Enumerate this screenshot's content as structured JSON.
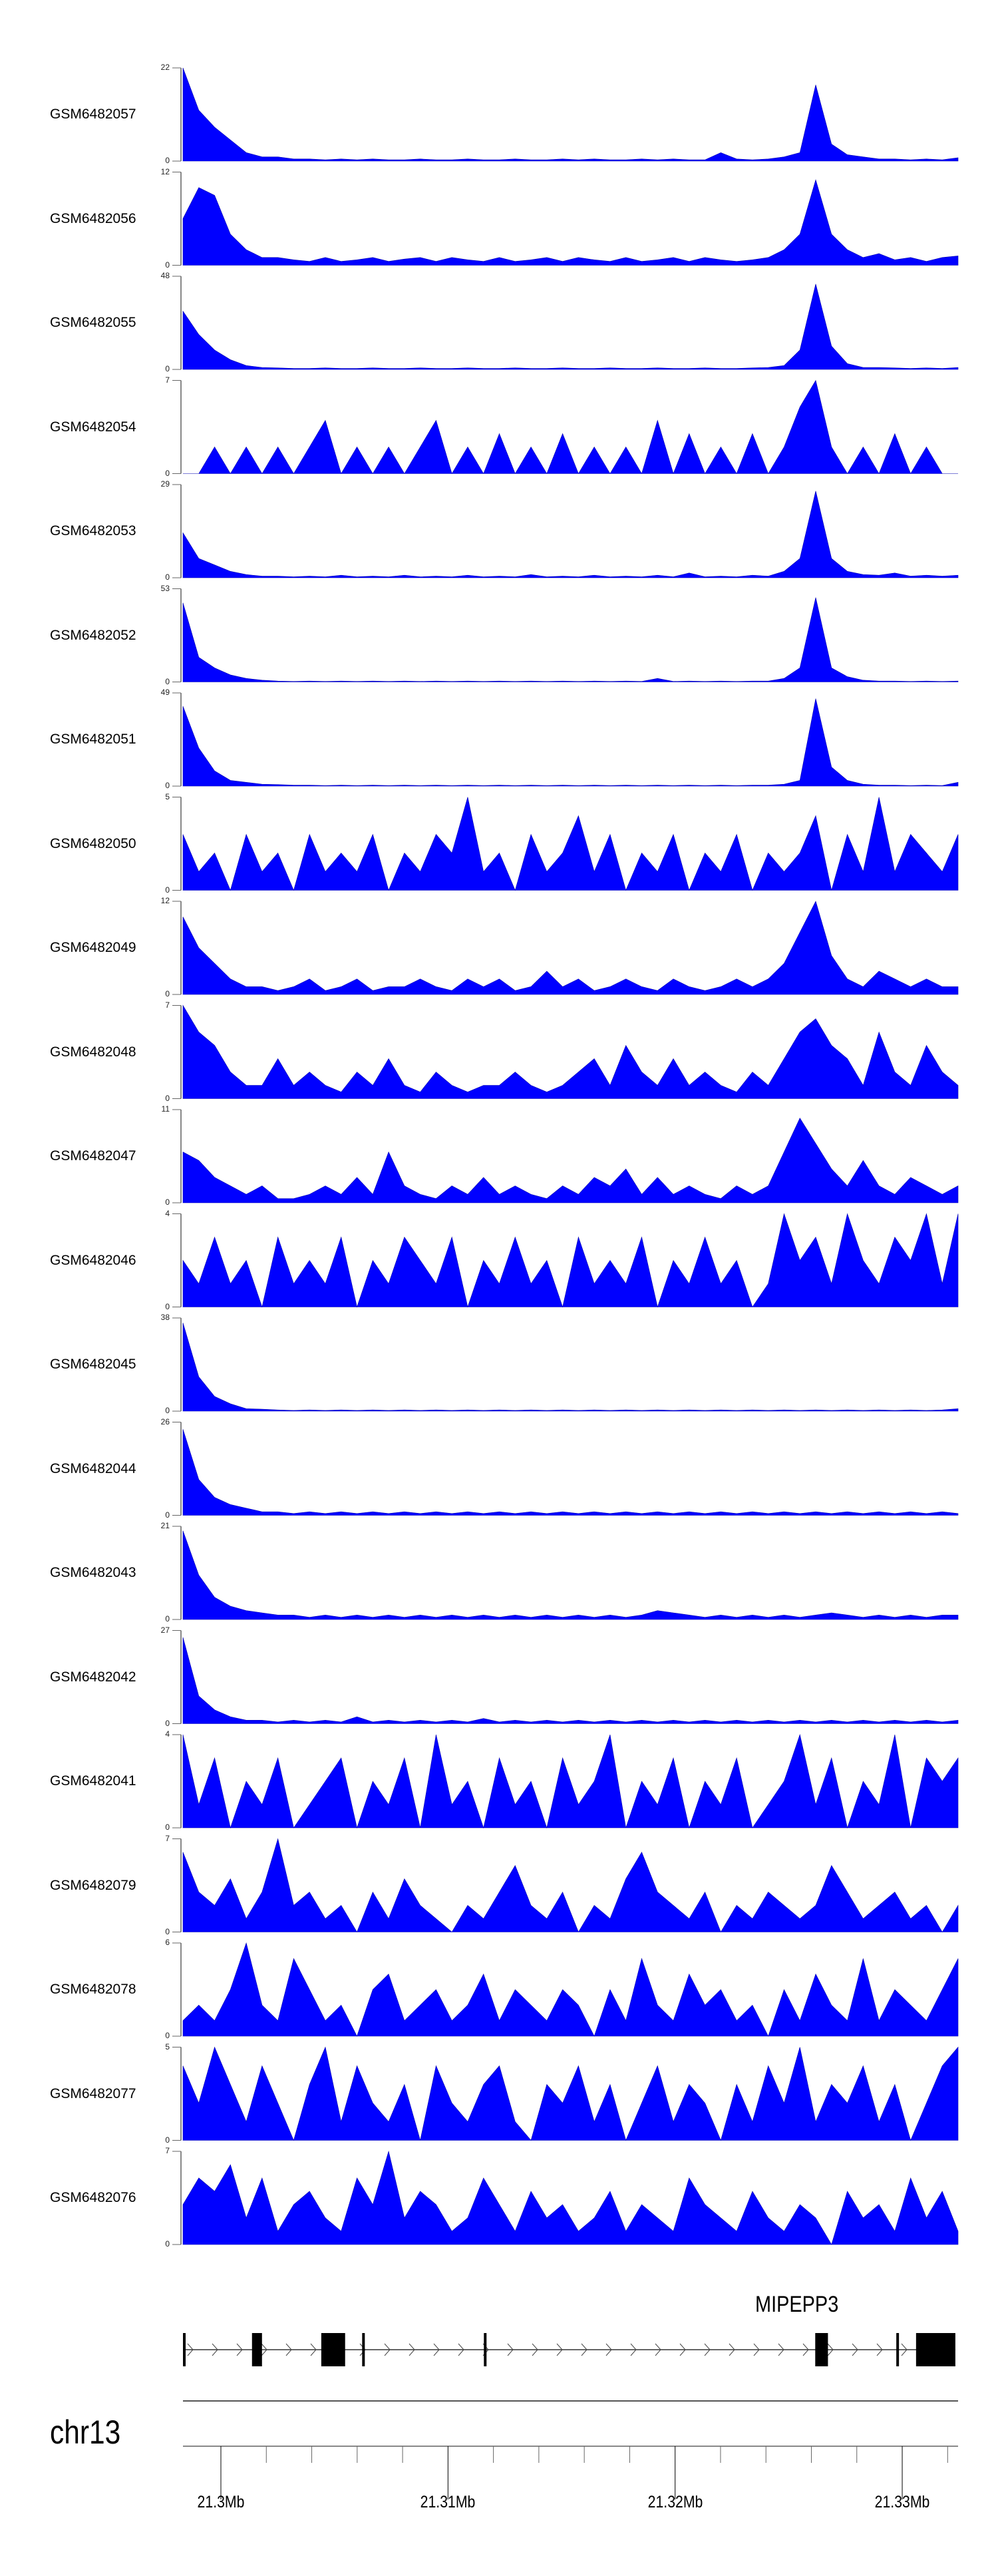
{
  "chart_data": {
    "type": "area",
    "title": "",
    "xlabel": "",
    "chromosome": "chr13",
    "x_range_kb": [
      21298.33,
      21332.46
    ],
    "x_ticks_kb": [
      21300,
      21310,
      21320,
      21330
    ],
    "x_tick_labels": [
      "21.3Mb",
      "21.31Mb",
      "21.32Mb",
      "21.33Mb"
    ],
    "minor_tick_step_kb": 2,
    "fill_color": "#0000ff",
    "tracks": [
      {
        "name": "GSM6482057",
        "ymax": 22,
        "values": [
          22,
          12,
          8,
          5,
          2,
          1,
          1,
          0.5,
          0.5,
          0.3,
          0.5,
          0.3,
          0.5,
          0.3,
          0.3,
          0.5,
          0.3,
          0.3,
          0.5,
          0.3,
          0.3,
          0.5,
          0.3,
          0.3,
          0.5,
          0.3,
          0.5,
          0.3,
          0.3,
          0.5,
          0.3,
          0.5,
          0.3,
          0.3,
          2,
          0.5,
          0.3,
          0.5,
          1,
          2,
          18,
          4,
          1.5,
          1,
          0.5,
          0.5,
          0.3,
          0.5,
          0.3,
          0.8
        ]
      },
      {
        "name": "GSM6482056",
        "ymax": 12,
        "values": [
          6,
          10,
          9,
          4,
          2,
          1,
          1,
          0.7,
          0.5,
          1,
          0.5,
          0.7,
          1,
          0.5,
          0.8,
          1,
          0.5,
          1,
          0.7,
          0.5,
          1,
          0.5,
          0.7,
          1,
          0.5,
          1,
          0.7,
          0.5,
          1,
          0.5,
          0.7,
          1,
          0.5,
          1,
          0.7,
          0.5,
          0.7,
          1,
          2,
          4,
          11,
          4,
          2,
          1,
          1.5,
          0.7,
          1,
          0.5,
          1,
          1.2
        ]
      },
      {
        "name": "GSM6482055",
        "ymax": 48,
        "values": [
          30,
          18,
          10,
          5,
          2,
          1,
          0.8,
          0.5,
          0.5,
          0.8,
          0.5,
          0.5,
          0.8,
          0.5,
          0.5,
          0.8,
          0.5,
          0.5,
          0.8,
          0.5,
          0.5,
          0.8,
          0.5,
          0.5,
          0.8,
          0.5,
          0.5,
          0.8,
          0.5,
          0.5,
          0.8,
          0.5,
          0.5,
          0.8,
          0.5,
          0.5,
          0.8,
          1,
          2,
          10,
          44,
          12,
          3,
          1,
          1,
          0.8,
          0.5,
          0.8,
          0.5,
          1
        ]
      },
      {
        "name": "GSM6482054",
        "ymax": 7,
        "values": [
          0,
          0,
          2,
          0,
          2,
          0,
          2,
          0,
          2,
          4,
          0,
          2,
          0,
          2,
          0,
          2,
          4,
          0,
          2,
          0,
          3,
          0,
          2,
          0,
          3,
          0,
          2,
          0,
          2,
          0,
          4,
          0,
          3,
          0,
          2,
          0,
          3,
          0,
          2,
          5,
          7,
          2,
          0,
          2,
          0,
          3,
          0,
          2,
          0,
          0
        ]
      },
      {
        "name": "GSM6482053",
        "ymax": 29,
        "values": [
          14,
          6,
          4,
          2,
          1,
          0.5,
          0.5,
          0.3,
          0.5,
          0.3,
          0.8,
          0.3,
          0.5,
          0.3,
          0.8,
          0.3,
          0.5,
          0.3,
          0.8,
          0.3,
          0.5,
          0.3,
          1,
          0.3,
          0.5,
          0.3,
          0.8,
          0.3,
          0.5,
          0.3,
          0.8,
          0.3,
          1.5,
          0.3,
          0.5,
          0.3,
          0.8,
          0.5,
          2,
          6,
          27,
          6,
          2,
          1,
          0.8,
          1.5,
          0.5,
          0.8,
          0.5,
          0.8
        ]
      },
      {
        "name": "GSM6482052",
        "ymax": 53,
        "values": [
          45,
          14,
          8,
          4,
          2,
          1,
          0.5,
          0.3,
          0.5,
          0.3,
          0.5,
          0.3,
          0.5,
          0.3,
          0.5,
          0.3,
          0.5,
          0.3,
          0.5,
          0.3,
          0.5,
          0.3,
          0.5,
          0.3,
          0.5,
          0.3,
          0.5,
          0.3,
          0.5,
          0.3,
          2,
          0.3,
          0.5,
          0.3,
          0.5,
          0.3,
          0.5,
          0.5,
          2,
          8,
          48,
          8,
          3,
          1,
          0.5,
          0.5,
          0.3,
          0.5,
          0.3,
          0.5
        ]
      },
      {
        "name": "GSM6482051",
        "ymax": 49,
        "values": [
          42,
          20,
          8,
          3,
          2,
          1,
          0.8,
          0.5,
          0.5,
          0.3,
          0.5,
          0.3,
          0.5,
          0.3,
          0.5,
          0.3,
          0.5,
          0.3,
          0.5,
          0.3,
          0.5,
          0.3,
          0.5,
          0.3,
          0.5,
          0.3,
          0.5,
          0.3,
          0.5,
          0.3,
          0.5,
          0.3,
          0.5,
          0.3,
          0.5,
          0.3,
          0.5,
          0.5,
          1,
          3,
          46,
          10,
          3,
          1,
          0.5,
          0.5,
          0.3,
          0.5,
          0.3,
          2
        ]
      },
      {
        "name": "GSM6482050",
        "ymax": 5,
        "values": [
          3,
          1,
          2,
          0,
          3,
          1,
          2,
          0,
          3,
          1,
          2,
          1,
          3,
          0,
          2,
          1,
          3,
          2,
          5,
          1,
          2,
          0,
          3,
          1,
          2,
          4,
          1,
          3,
          0,
          2,
          1,
          3,
          0,
          2,
          1,
          3,
          0,
          2,
          1,
          2,
          4,
          0,
          3,
          1,
          5,
          1,
          3,
          2,
          1,
          3
        ]
      },
      {
        "name": "GSM6482049",
        "ymax": 12,
        "values": [
          10,
          6,
          4,
          2,
          1,
          1,
          0.5,
          1,
          2,
          0.5,
          1,
          2,
          0.5,
          1,
          1,
          2,
          1,
          0.5,
          2,
          1,
          2,
          0.5,
          1,
          3,
          1,
          2,
          0.5,
          1,
          2,
          1,
          0.5,
          2,
          1,
          0.5,
          1,
          2,
          1,
          2,
          4,
          8,
          12,
          5,
          2,
          1,
          3,
          2,
          1,
          2,
          1,
          1
        ]
      },
      {
        "name": "GSM6482048",
        "ymax": 7,
        "values": [
          7,
          5,
          4,
          2,
          1,
          1,
          3,
          1,
          2,
          1,
          0.5,
          2,
          1,
          3,
          1,
          0.5,
          2,
          1,
          0.5,
          1,
          1,
          2,
          1,
          0.5,
          1,
          2,
          3,
          1,
          4,
          2,
          1,
          3,
          1,
          2,
          1,
          0.5,
          2,
          1,
          3,
          5,
          6,
          4,
          3,
          1,
          5,
          2,
          1,
          4,
          2,
          1
        ]
      },
      {
        "name": "GSM6482047",
        "ymax": 11,
        "values": [
          6,
          5,
          3,
          2,
          1,
          2,
          0.5,
          0.5,
          1,
          2,
          1,
          3,
          1,
          6,
          2,
          1,
          0.5,
          2,
          1,
          3,
          1,
          2,
          1,
          0.5,
          2,
          1,
          3,
          2,
          4,
          1,
          3,
          1,
          2,
          1,
          0.5,
          2,
          1,
          2,
          6,
          10,
          7,
          4,
          2,
          5,
          2,
          1,
          3,
          2,
          1,
          2
        ]
      },
      {
        "name": "GSM6482046",
        "ymax": 4,
        "values": [
          2,
          1,
          3,
          1,
          2,
          0,
          3,
          1,
          2,
          1,
          3,
          0,
          2,
          1,
          3,
          2,
          1,
          3,
          0,
          2,
          1,
          3,
          1,
          2,
          0,
          3,
          1,
          2,
          1,
          3,
          0,
          2,
          1,
          3,
          1,
          2,
          0,
          1,
          4,
          2,
          3,
          1,
          4,
          2,
          1,
          3,
          2,
          4,
          1,
          4
        ]
      },
      {
        "name": "GSM6482045",
        "ymax": 38,
        "values": [
          36,
          14,
          6,
          3,
          1,
          0.8,
          0.5,
          0.3,
          0.5,
          0.3,
          0.5,
          0.3,
          0.5,
          0.3,
          0.5,
          0.3,
          0.5,
          0.3,
          0.5,
          0.3,
          0.5,
          0.3,
          0.5,
          0.3,
          0.5,
          0.3,
          0.5,
          0.3,
          0.5,
          0.3,
          0.5,
          0.3,
          0.5,
          0.3,
          0.5,
          0.3,
          0.5,
          0.3,
          0.5,
          0.3,
          0.5,
          0.3,
          0.5,
          0.3,
          0.5,
          0.3,
          0.5,
          0.3,
          0.5,
          1
        ]
      },
      {
        "name": "GSM6482044",
        "ymax": 26,
        "values": [
          24,
          10,
          5,
          3,
          2,
          1,
          1,
          0.5,
          1,
          0.5,
          1,
          0.5,
          1,
          0.5,
          1,
          0.5,
          1,
          0.5,
          1,
          0.5,
          1,
          0.5,
          1,
          0.5,
          1,
          0.5,
          1,
          0.5,
          1,
          0.5,
          1,
          0.5,
          1,
          0.5,
          1,
          0.5,
          1,
          0.5,
          1,
          0.5,
          1,
          0.5,
          1,
          0.5,
          1,
          0.5,
          1,
          0.5,
          1,
          0.5
        ]
      },
      {
        "name": "GSM6482043",
        "ymax": 21,
        "values": [
          20,
          10,
          5,
          3,
          2,
          1.5,
          1,
          1,
          0.5,
          1,
          0.5,
          1,
          0.5,
          1,
          0.5,
          1,
          0.5,
          1,
          0.5,
          1,
          0.5,
          1,
          0.5,
          1,
          0.5,
          1,
          0.5,
          1,
          0.5,
          1,
          2,
          1.5,
          1,
          0.5,
          1,
          0.5,
          1,
          0.5,
          1,
          0.5,
          1,
          1.5,
          1,
          0.5,
          1,
          0.5,
          1,
          0.5,
          1,
          1
        ]
      },
      {
        "name": "GSM6482042",
        "ymax": 27,
        "values": [
          25,
          8,
          4,
          2,
          1,
          1,
          0.5,
          1,
          0.5,
          1,
          0.5,
          2,
          0.5,
          1,
          0.5,
          1,
          0.5,
          1,
          0.5,
          1.5,
          0.5,
          1,
          0.5,
          1,
          0.5,
          1,
          0.5,
          1,
          0.5,
          1,
          0.5,
          1,
          0.5,
          1,
          0.5,
          1,
          0.5,
          1,
          0.5,
          1,
          0.5,
          1,
          0.5,
          1,
          0.5,
          1,
          0.5,
          1,
          0.5,
          1
        ]
      },
      {
        "name": "GSM6482041",
        "ymax": 4,
        "values": [
          4,
          1,
          3,
          0,
          2,
          1,
          3,
          0,
          1,
          2,
          3,
          0,
          2,
          1,
          3,
          0,
          4,
          1,
          2,
          0,
          3,
          1,
          2,
          0,
          3,
          1,
          2,
          4,
          0,
          2,
          1,
          3,
          0,
          2,
          1,
          3,
          0,
          1,
          2,
          4,
          1,
          3,
          0,
          2,
          1,
          4,
          0,
          3,
          2,
          3
        ]
      },
      {
        "name": "GSM6482079",
        "ymax": 7,
        "values": [
          6,
          3,
          2,
          4,
          1,
          3,
          7,
          2,
          3,
          1,
          2,
          0,
          3,
          1,
          4,
          2,
          1,
          0,
          2,
          1,
          3,
          5,
          2,
          1,
          3,
          0,
          2,
          1,
          4,
          6,
          3,
          2,
          1,
          3,
          0,
          2,
          1,
          3,
          2,
          1,
          2,
          5,
          3,
          1,
          2,
          3,
          1,
          2,
          0,
          2
        ]
      },
      {
        "name": "GSM6482078",
        "ymax": 6,
        "values": [
          1,
          2,
          1,
          3,
          6,
          2,
          1,
          5,
          3,
          1,
          2,
          0,
          3,
          4,
          1,
          2,
          3,
          1,
          2,
          4,
          1,
          3,
          2,
          1,
          3,
          2,
          0,
          3,
          1,
          5,
          2,
          1,
          4,
          2,
          3,
          1,
          2,
          0,
          3,
          1,
          4,
          2,
          1,
          5,
          1,
          3,
          2,
          1,
          3,
          5
        ]
      },
      {
        "name": "GSM6482077",
        "ymax": 5,
        "values": [
          4,
          2,
          5,
          3,
          1,
          4,
          2,
          0,
          3,
          5,
          1,
          4,
          2,
          1,
          3,
          0,
          4,
          2,
          1,
          3,
          4,
          1,
          0,
          3,
          2,
          4,
          1,
          3,
          0,
          2,
          4,
          1,
          3,
          2,
          0,
          3,
          1,
          4,
          2,
          5,
          1,
          3,
          2,
          4,
          1,
          3,
          0,
          2,
          4,
          5
        ]
      },
      {
        "name": "GSM6482076",
        "ymax": 7,
        "values": [
          3,
          5,
          4,
          6,
          2,
          5,
          1,
          3,
          4,
          2,
          1,
          5,
          3,
          7,
          2,
          4,
          3,
          1,
          2,
          5,
          3,
          1,
          4,
          2,
          3,
          1,
          2,
          4,
          1,
          3,
          2,
          1,
          5,
          3,
          2,
          1,
          4,
          2,
          1,
          3,
          2,
          0,
          4,
          2,
          3,
          1,
          5,
          2,
          4,
          1
        ]
      }
    ],
    "gene": {
      "name": "MIPEPP3",
      "strand": "+",
      "exons_kb": [
        [
          21298.33,
          21298.4
        ],
        [
          21301.37,
          21301.81
        ],
        [
          21304.42,
          21305.47
        ],
        [
          21306.22,
          21306.3
        ],
        [
          21311.58,
          21311.66
        ],
        [
          21326.17,
          21326.73
        ],
        [
          21329.74,
          21329.8
        ],
        [
          21330.61,
          21332.34
        ]
      ]
    }
  }
}
